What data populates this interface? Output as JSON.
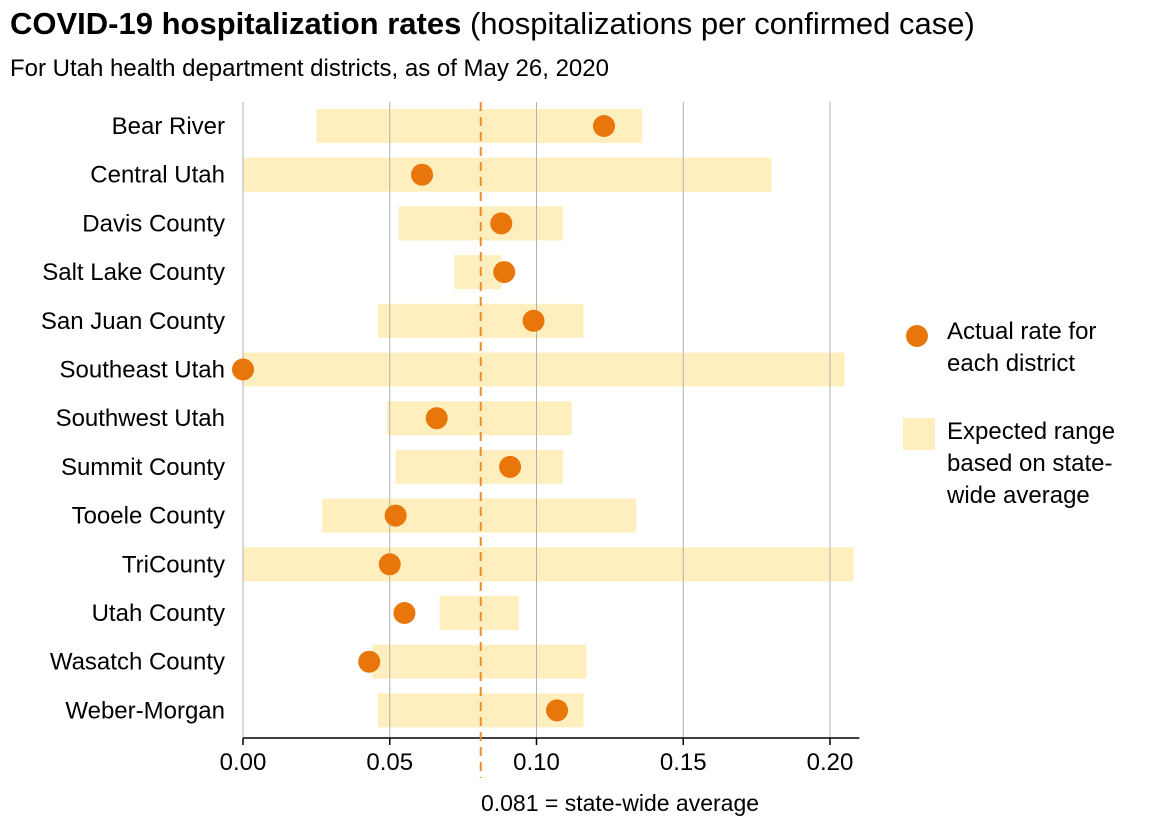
{
  "title": {
    "bold": "COVID-19 hospitalization rates",
    "normal": " (hospitalizations per confirmed case)"
  },
  "subtitle": "For Utah health department districts, as of May 26, 2020",
  "colors": {
    "dot": "#E8760A",
    "range": "#FFEFBF",
    "average_line": "#F28C28",
    "grid": "#B0B0B0",
    "axis": "#000000"
  },
  "legend": {
    "actual_line1": "Actual rate for",
    "actual_line2": "each district",
    "range_line1": "Expected range",
    "range_line2": "based on state-",
    "range_line3": "wide average"
  },
  "chart_data": {
    "type": "dot-range",
    "orientation": "horizontal",
    "categories": [
      "Bear River",
      "Central Utah",
      "Davis County",
      "Salt Lake County",
      "San Juan County",
      "Southeast Utah",
      "Southwest Utah",
      "Summit County",
      "Tooele County",
      "TriCounty",
      "Utah County",
      "Wasatch County",
      "Weber-Morgan"
    ],
    "series": [
      {
        "name": "Actual rate for each district",
        "values": [
          0.123,
          0.061,
          0.088,
          0.089,
          0.099,
          0.0,
          0.066,
          0.091,
          0.052,
          0.05,
          0.055,
          0.043,
          0.107
        ]
      },
      {
        "name": "Expected range based on state-wide average",
        "ranges": [
          [
            0.025,
            0.136
          ],
          [
            0.0,
            0.18
          ],
          [
            0.053,
            0.109
          ],
          [
            0.072,
            0.088
          ],
          [
            0.046,
            0.116
          ],
          [
            0.0,
            0.205
          ],
          [
            0.049,
            0.112
          ],
          [
            0.052,
            0.109
          ],
          [
            0.027,
            0.134
          ],
          [
            0.0,
            0.208
          ],
          [
            0.067,
            0.094
          ],
          [
            0.044,
            0.117
          ],
          [
            0.046,
            0.116
          ]
        ]
      }
    ],
    "reference_line": {
      "value": 0.081,
      "label": "0.081 = state-wide average"
    },
    "xlim": [
      0.0,
      0.21
    ],
    "xticks": [
      0.0,
      0.05,
      0.1,
      0.15,
      0.2
    ],
    "xtick_labels": [
      "0.00",
      "0.05",
      "0.10",
      "0.15",
      "0.20"
    ],
    "grid": true,
    "legend_position": "right"
  }
}
